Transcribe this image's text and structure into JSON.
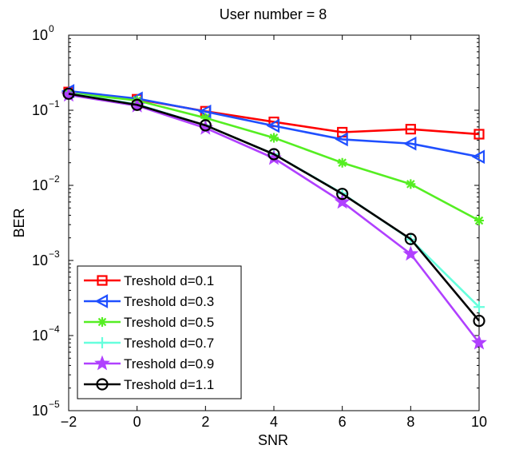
{
  "chart_data": {
    "type": "line",
    "title": "User number = 8",
    "xlabel": "SNR",
    "ylabel": "BER",
    "yscale": "log",
    "xlim": [
      -2,
      10
    ],
    "ylim_exponent": [
      -5,
      0
    ],
    "x_ticks": [
      -2,
      0,
      2,
      4,
      6,
      8,
      10
    ],
    "x_tick_labels": [
      "−2",
      "0",
      "2",
      "4",
      "6",
      "8",
      "10"
    ],
    "y_tick_base": "10",
    "y_tick_exponents": [
      "−5",
      "−4",
      "−3",
      "−2",
      "−1",
      "0"
    ],
    "grid": false,
    "legend_position": "bottom-left",
    "x": [
      -2,
      0,
      2,
      4,
      6,
      8,
      10
    ],
    "series": [
      {
        "name": "Treshold d=0.1",
        "color": "#ff0000",
        "marker": "square",
        "values": [
          0.175,
          0.14,
          0.097,
          0.07,
          0.051,
          0.056,
          0.048
        ]
      },
      {
        "name": "Treshold d=0.3",
        "color": "#1f4fff",
        "marker": "triangle-left",
        "values": [
          0.18,
          0.143,
          0.096,
          0.062,
          0.041,
          0.036,
          0.024
        ]
      },
      {
        "name": "Treshold d=0.5",
        "color": "#55ee22",
        "marker": "asterisk",
        "values": [
          0.17,
          0.135,
          0.079,
          0.043,
          0.02,
          0.0104,
          0.0034
        ]
      },
      {
        "name": "Treshold d=0.7",
        "color": "#66ffdd",
        "marker": "plus",
        "values": [
          0.168,
          0.12,
          0.063,
          0.026,
          0.0078,
          0.0019,
          0.00024
        ]
      },
      {
        "name": "Treshold d=0.9",
        "color": "#b040ff",
        "marker": "star",
        "values": [
          0.16,
          0.115,
          0.058,
          0.023,
          0.006,
          0.00122,
          8e-05
        ]
      },
      {
        "name": "Treshold d=1.1",
        "color": "#000000",
        "marker": "circle",
        "values": [
          0.166,
          0.118,
          0.063,
          0.026,
          0.0077,
          0.00193,
          0.000157
        ]
      }
    ]
  }
}
